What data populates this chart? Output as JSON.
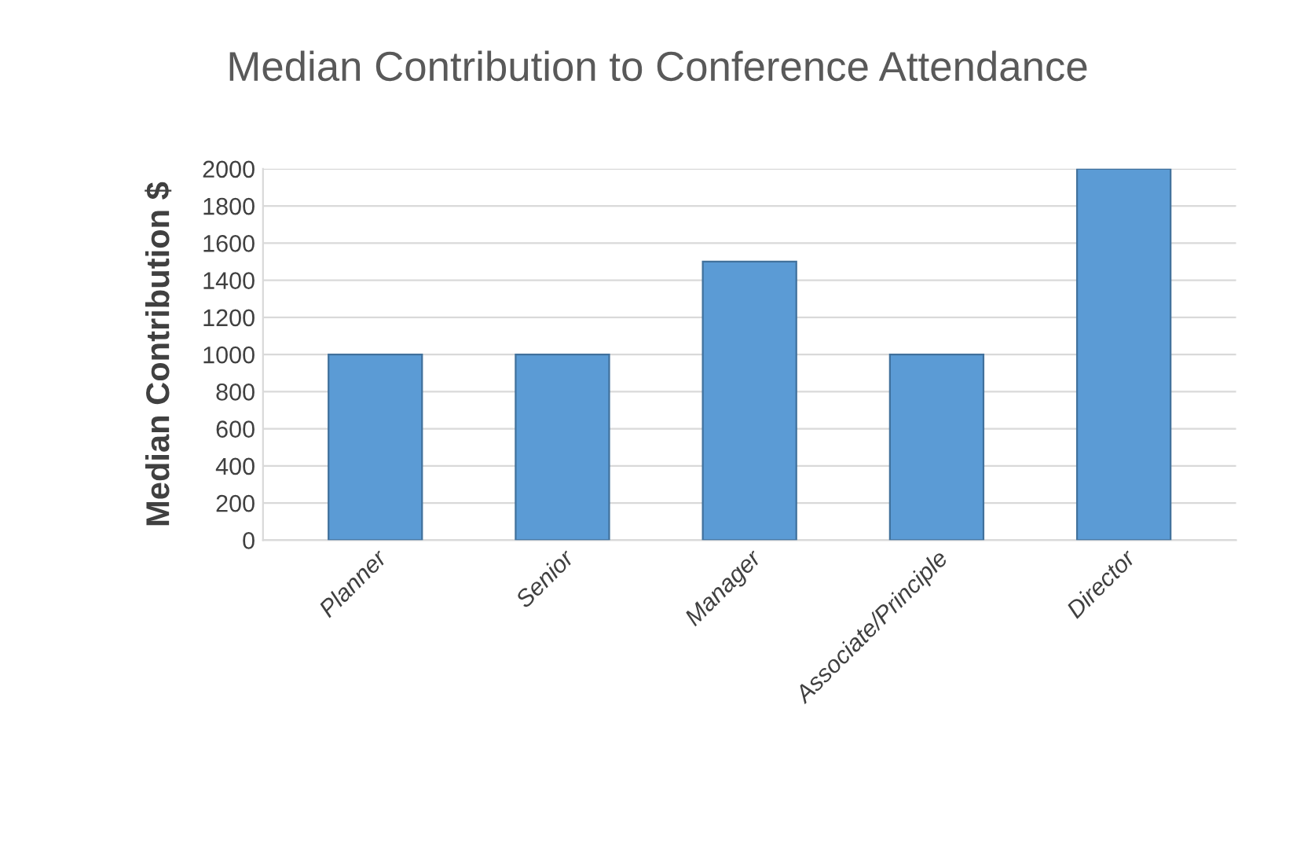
{
  "chart_data": {
    "type": "bar",
    "title": "Median Contribution to Conference Attendance",
    "ylabel": "Median Contribution $",
    "categories": [
      "Planner",
      "Senior",
      "Manager",
      "Associate/Principle",
      "Director"
    ],
    "values": [
      1000,
      1000,
      1500,
      1000,
      2000
    ],
    "color": "#5b9bd5",
    "ylim": [
      0,
      2000
    ],
    "yticks": [
      0,
      200,
      400,
      600,
      800,
      1000,
      1200,
      1400,
      1600,
      1800,
      2000
    ],
    "grid": "y"
  }
}
